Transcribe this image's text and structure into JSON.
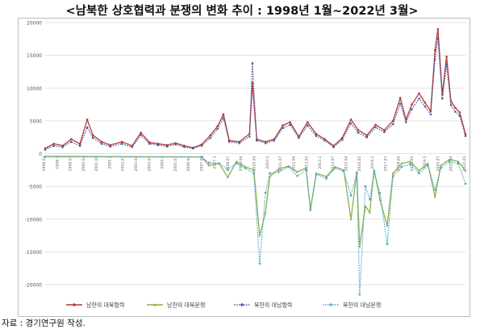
{
  "title": "<남북한 상호협력과 분쟁의 변화 추이 : 1998년 1월~2022년 3월>",
  "source": "자료 : 경기연구원 작성.",
  "chart_data": {
    "type": "line",
    "ylim": [
      -20000,
      20000
    ],
    "yticks": [
      20000,
      15000,
      10000,
      5000,
      0,
      -5000,
      -10000,
      -15000,
      -20000
    ],
    "grid": true,
    "legend": "bottom",
    "x_start": "1998-01",
    "x_end": "2022-03",
    "xtick_labels": [
      "1998.01",
      "1998.1",
      "1999.07",
      "2000.04",
      "2001.01",
      "2001.1",
      "2002.07",
      "2003.04",
      "2004.01",
      "2004.1",
      "2005.07",
      "2006.04",
      "2007.01",
      "2007.1",
      "2008.07",
      "2009.04",
      "2010.01",
      "2010.1",
      "2011.07",
      "2012.04",
      "2013.01",
      "2013.1",
      "2014.07",
      "2015.04",
      "2016.01",
      "2016.1",
      "2017.07",
      "2018.04",
      "2019.01",
      "2019.1",
      "2020.07",
      "2021.04",
      "2022.01"
    ],
    "series": [
      {
        "name": "남한의 대북협력",
        "color": "#b23a3a",
        "style": "solid",
        "marker": "circle",
        "points": [
          [
            "1998-01",
            800
          ],
          [
            "1998-07",
            1500
          ],
          [
            "1999-01",
            1200
          ],
          [
            "1999-07",
            2200
          ],
          [
            "2000-01",
            1500
          ],
          [
            "2000-06",
            5200
          ],
          [
            "2000-10",
            2800
          ],
          [
            "2001-04",
            1800
          ],
          [
            "2001-10",
            1300
          ],
          [
            "2002-06",
            1800
          ],
          [
            "2003-01",
            1200
          ],
          [
            "2003-07",
            3200
          ],
          [
            "2004-01",
            1700
          ],
          [
            "2004-07",
            1500
          ],
          [
            "2005-01",
            1300
          ],
          [
            "2005-07",
            1600
          ],
          [
            "2006-01",
            1200
          ],
          [
            "2006-07",
            900
          ],
          [
            "2007-01",
            1400
          ],
          [
            "2007-07",
            2800
          ],
          [
            "2007-12",
            4200
          ],
          [
            "2008-04",
            6000
          ],
          [
            "2008-08",
            2000
          ],
          [
            "2009-03",
            1800
          ],
          [
            "2009-10",
            3000
          ],
          [
            "2009-12",
            10800
          ],
          [
            "2010-03",
            2200
          ],
          [
            "2010-09",
            1800
          ],
          [
            "2011-03",
            2200
          ],
          [
            "2011-09",
            4300
          ],
          [
            "2012-02",
            4800
          ],
          [
            "2012-08",
            2600
          ],
          [
            "2013-02",
            4800
          ],
          [
            "2013-08",
            3000
          ],
          [
            "2014-02",
            2200
          ],
          [
            "2014-08",
            1200
          ],
          [
            "2015-02",
            2400
          ],
          [
            "2015-08",
            5200
          ],
          [
            "2016-01",
            3600
          ],
          [
            "2016-07",
            2800
          ],
          [
            "2017-01",
            4400
          ],
          [
            "2017-07",
            3600
          ],
          [
            "2018-01",
            5000
          ],
          [
            "2018-06",
            8500
          ],
          [
            "2018-10",
            5200
          ],
          [
            "2019-02",
            7500
          ],
          [
            "2019-07",
            9200
          ],
          [
            "2019-11",
            7800
          ],
          [
            "2020-03",
            6500
          ],
          [
            "2020-06",
            15800
          ],
          [
            "2020-08",
            19000
          ],
          [
            "2020-11",
            9000
          ],
          [
            "2021-02",
            14800
          ],
          [
            "2021-05",
            8000
          ],
          [
            "2021-08",
            7000
          ],
          [
            "2021-11",
            6300
          ],
          [
            "2022-03",
            3000
          ]
        ]
      },
      {
        "name": "남한의 대북분쟁",
        "color": "#8bb14a",
        "style": "solid",
        "marker": "triangle",
        "points": [
          [
            "1998-01",
            -400
          ],
          [
            "2007-01",
            -500
          ],
          [
            "2007-06",
            -1800
          ],
          [
            "2008-01",
            -1500
          ],
          [
            "2008-07",
            -3600
          ],
          [
            "2009-01",
            -1200
          ],
          [
            "2009-07",
            -2000
          ],
          [
            "2010-01",
            -2500
          ],
          [
            "2010-05",
            -12500
          ],
          [
            "2010-09",
            -9000
          ],
          [
            "2010-12",
            -3500
          ],
          [
            "2011-06",
            -2400
          ],
          [
            "2012-01",
            -1900
          ],
          [
            "2012-07",
            -2800
          ],
          [
            "2013-01",
            -2200
          ],
          [
            "2013-04",
            -8500
          ],
          [
            "2013-08",
            -3000
          ],
          [
            "2014-03",
            -3500
          ],
          [
            "2014-09",
            -2000
          ],
          [
            "2015-03",
            -2500
          ],
          [
            "2015-08",
            -10000
          ],
          [
            "2015-12",
            -2800
          ],
          [
            "2016-02",
            -14200
          ],
          [
            "2016-06",
            -8000
          ],
          [
            "2016-09",
            -9000
          ],
          [
            "2016-12",
            -2500
          ],
          [
            "2017-04",
            -7000
          ],
          [
            "2017-09",
            -11000
          ],
          [
            "2018-01",
            -3000
          ],
          [
            "2018-07",
            -1500
          ],
          [
            "2019-01",
            -1200
          ],
          [
            "2019-07",
            -2600
          ],
          [
            "2020-01",
            -1500
          ],
          [
            "2020-06",
            -6600
          ],
          [
            "2020-10",
            -1800
          ],
          [
            "2021-04",
            -900
          ],
          [
            "2021-10",
            -1200
          ],
          [
            "2022-03",
            -2600
          ]
        ]
      },
      {
        "name": "북한의 대남협력",
        "color": "#4a5a9a",
        "style": "dotted",
        "marker": "circle",
        "points": [
          [
            "1998-01",
            600
          ],
          [
            "1998-07",
            1200
          ],
          [
            "1999-01",
            1000
          ],
          [
            "1999-07",
            1800
          ],
          [
            "2000-01",
            1200
          ],
          [
            "2000-06",
            4000
          ],
          [
            "2000-10",
            2400
          ],
          [
            "2001-04",
            1500
          ],
          [
            "2001-10",
            1100
          ],
          [
            "2002-06",
            1500
          ],
          [
            "2003-01",
            1000
          ],
          [
            "2003-07",
            2800
          ],
          [
            "2004-01",
            1500
          ],
          [
            "2004-07",
            1300
          ],
          [
            "2005-01",
            1100
          ],
          [
            "2005-07",
            1400
          ],
          [
            "2006-01",
            1000
          ],
          [
            "2006-07",
            800
          ],
          [
            "2007-01",
            1200
          ],
          [
            "2007-07",
            2400
          ],
          [
            "2007-12",
            3800
          ],
          [
            "2008-04",
            5400
          ],
          [
            "2008-08",
            1800
          ],
          [
            "2009-03",
            1600
          ],
          [
            "2009-10",
            2600
          ],
          [
            "2009-12",
            13800
          ],
          [
            "2010-03",
            2000
          ],
          [
            "2010-09",
            1600
          ],
          [
            "2011-03",
            2000
          ],
          [
            "2011-09",
            3900
          ],
          [
            "2012-02",
            4400
          ],
          [
            "2012-08",
            2400
          ],
          [
            "2013-02",
            4300
          ],
          [
            "2013-08",
            2700
          ],
          [
            "2014-02",
            2000
          ],
          [
            "2014-08",
            1000
          ],
          [
            "2015-02",
            2100
          ],
          [
            "2015-08",
            4600
          ],
          [
            "2016-01",
            3200
          ],
          [
            "2016-07",
            2500
          ],
          [
            "2017-01",
            4000
          ],
          [
            "2017-07",
            3300
          ],
          [
            "2018-01",
            4500
          ],
          [
            "2018-06",
            7600
          ],
          [
            "2018-10",
            4800
          ],
          [
            "2019-02",
            6800
          ],
          [
            "2019-07",
            8400
          ],
          [
            "2019-11",
            7200
          ],
          [
            "2020-03",
            6000
          ],
          [
            "2020-06",
            14400
          ],
          [
            "2020-08",
            17600
          ],
          [
            "2020-11",
            8400
          ],
          [
            "2021-02",
            13600
          ],
          [
            "2021-05",
            7400
          ],
          [
            "2021-08",
            6400
          ],
          [
            "2021-11",
            5800
          ],
          [
            "2022-03",
            2700
          ]
        ]
      },
      {
        "name": "북한의 대남분쟁",
        "color": "#4fa7c9",
        "style": "dotted",
        "marker": "square",
        "points": [
          [
            "1998-01",
            -500
          ],
          [
            "2007-01",
            -500
          ],
          [
            "2007-06",
            -1400
          ],
          [
            "2008-01",
            -1500
          ],
          [
            "2008-07",
            -2400
          ],
          [
            "2009-01",
            -1500
          ],
          [
            "2009-07",
            -2200
          ],
          [
            "2010-01",
            -3000
          ],
          [
            "2010-05",
            -16800
          ],
          [
            "2010-09",
            -6000
          ],
          [
            "2010-12",
            -3000
          ],
          [
            "2011-06",
            -2800
          ],
          [
            "2012-01",
            -2000
          ],
          [
            "2012-07",
            -3400
          ],
          [
            "2013-01",
            -2500
          ],
          [
            "2013-04",
            -8600
          ],
          [
            "2013-08",
            -3200
          ],
          [
            "2014-03",
            -3800
          ],
          [
            "2014-09",
            -2200
          ],
          [
            "2015-03",
            -2700
          ],
          [
            "2015-08",
            -6400
          ],
          [
            "2015-12",
            -3000
          ],
          [
            "2016-02",
            -21500
          ],
          [
            "2016-06",
            -5000
          ],
          [
            "2016-09",
            -7000
          ],
          [
            "2016-12",
            -2800
          ],
          [
            "2017-04",
            -6000
          ],
          [
            "2017-09",
            -13800
          ],
          [
            "2018-01",
            -3500
          ],
          [
            "2018-07",
            -2000
          ],
          [
            "2019-01",
            -1600
          ],
          [
            "2019-07",
            -3000
          ],
          [
            "2020-01",
            -1800
          ],
          [
            "2020-06",
            -5500
          ],
          [
            "2020-10",
            -2200
          ],
          [
            "2021-04",
            -1200
          ],
          [
            "2021-10",
            -1500
          ],
          [
            "2022-03",
            -4600
          ]
        ]
      }
    ]
  }
}
